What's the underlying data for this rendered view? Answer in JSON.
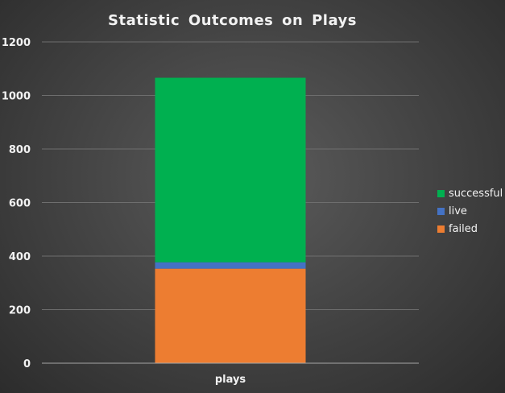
{
  "chart_data": {
    "type": "bar",
    "stacked": true,
    "title": "Statistic  Outcomes  on  Plays",
    "categories": [
      "plays"
    ],
    "series": [
      {
        "name": "failed",
        "values": [
          353
        ],
        "color": "#ed7d31"
      },
      {
        "name": "live",
        "values": [
          24
        ],
        "color": "#4472c4"
      },
      {
        "name": "successful",
        "values": [
          689
        ],
        "color": "#00b050"
      }
    ],
    "ylim": [
      0,
      1200
    ],
    "yticks": [
      0,
      200,
      400,
      600,
      800,
      1000,
      1200
    ],
    "grid": true,
    "legend": "right",
    "legend_order": [
      "successful",
      "live",
      "failed"
    ]
  }
}
